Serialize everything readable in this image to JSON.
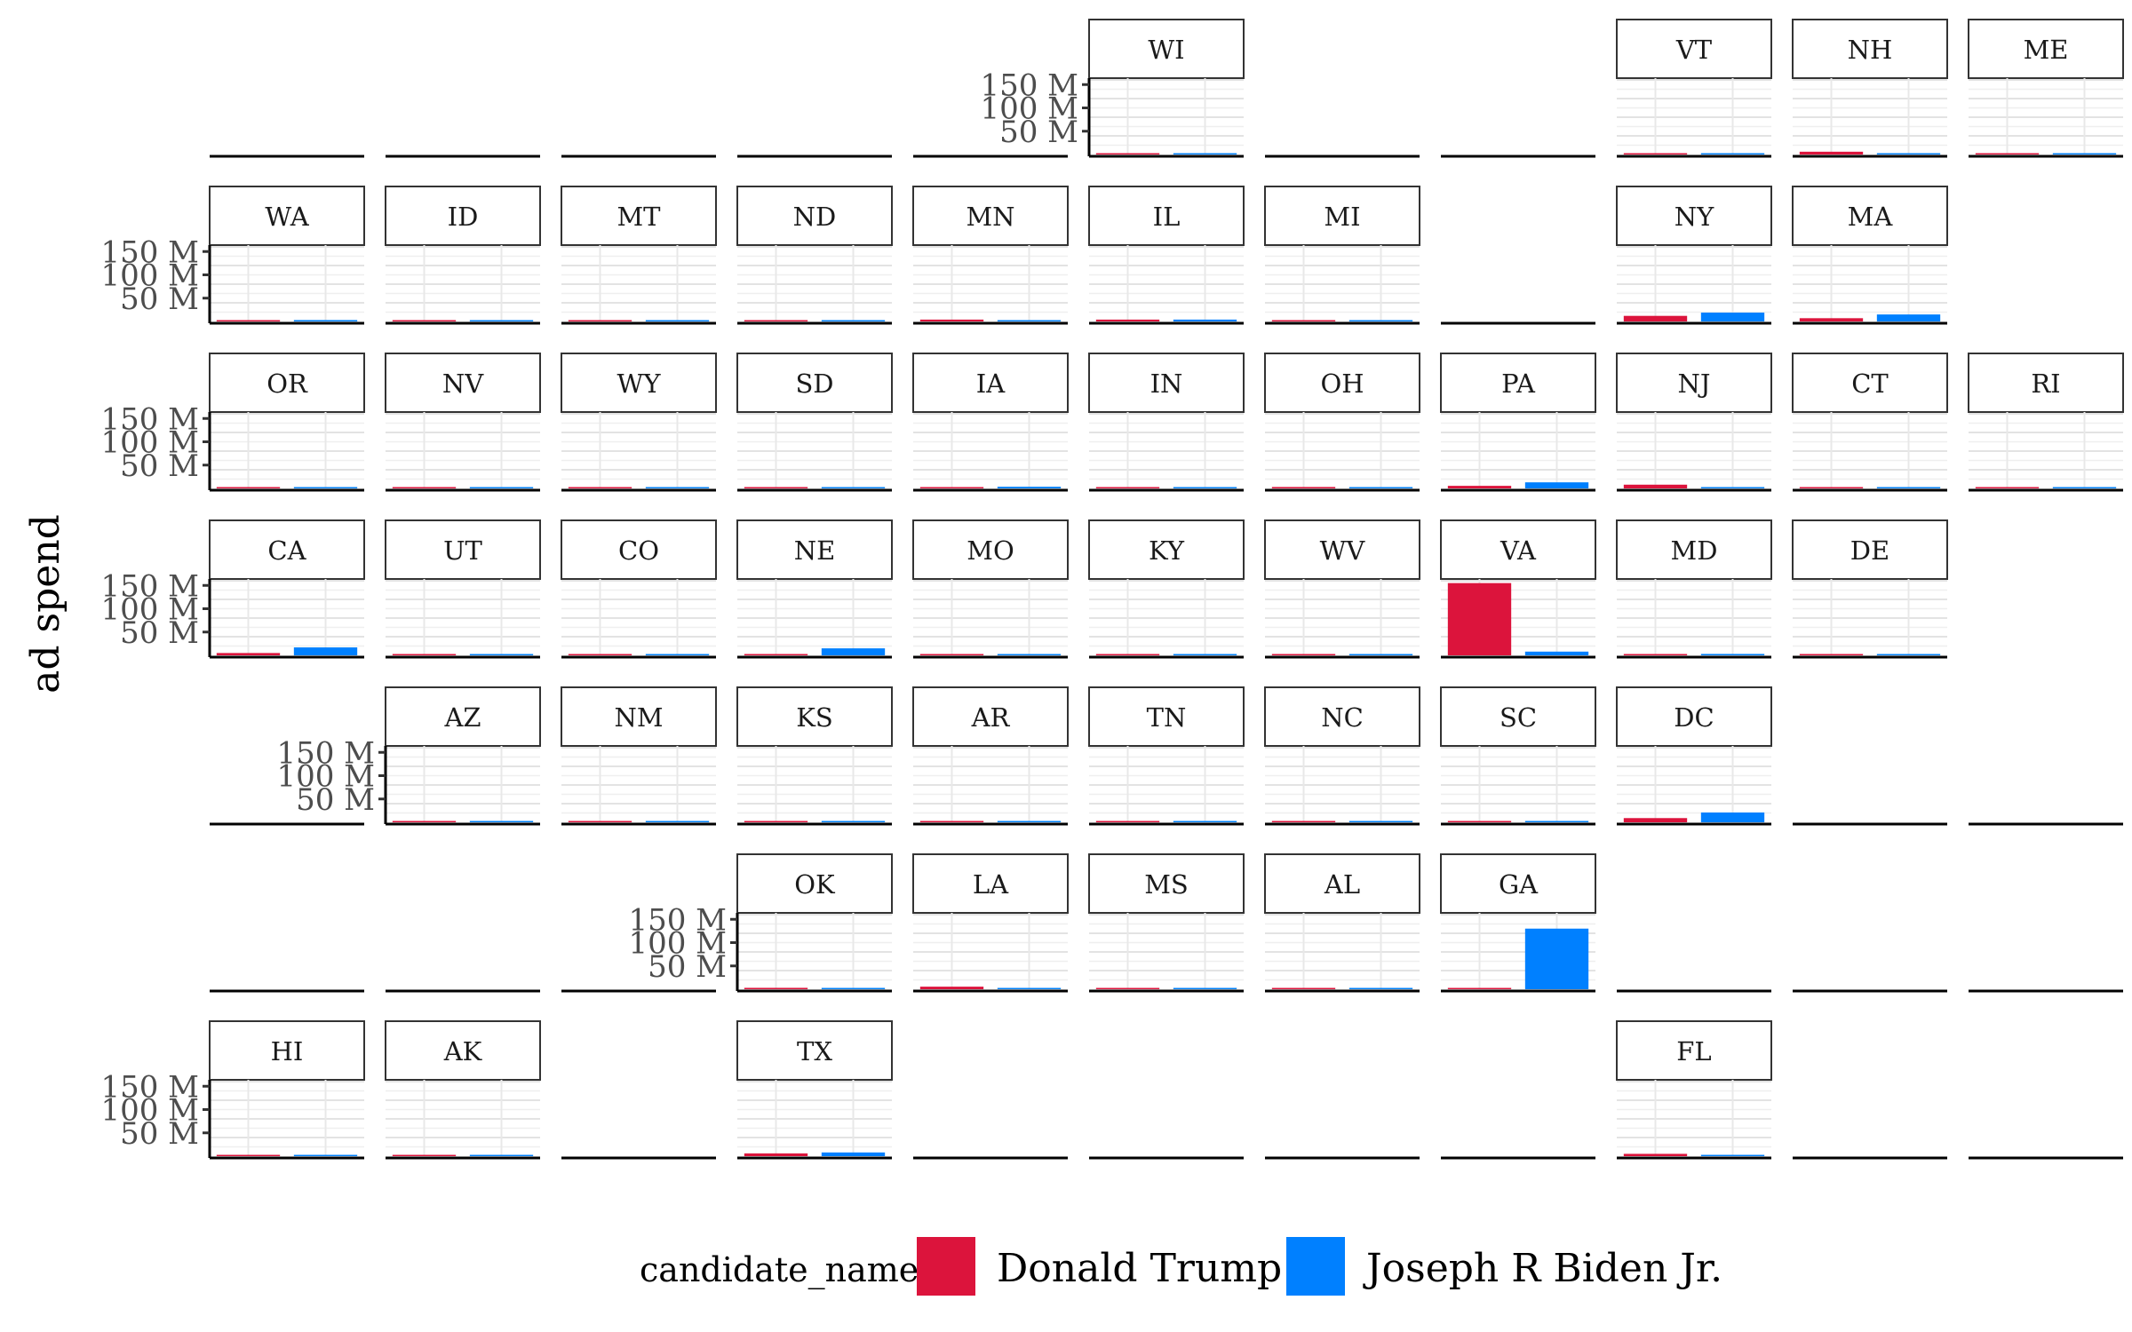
{
  "chart_data": {
    "type": "bar",
    "layout": "geofacet grid of US states",
    "ylabel": "ad spend",
    "y_ticks": [
      "50 M",
      "100 M",
      "150 M"
    ],
    "y_tick_values": [
      50,
      100,
      150
    ],
    "ylim": [
      0,
      160
    ],
    "units": "M",
    "legend": {
      "title": "candidate_name",
      "placement": "bottom",
      "entries": [
        {
          "name": "Donald Trump",
          "color": "#dc143c"
        },
        {
          "name": "Joseph R Biden Jr.",
          "color": "#0080ff"
        }
      ]
    },
    "categories": [
      "Donald Trump",
      "Joseph R Biden Jr."
    ],
    "grid": true,
    "facets": [
      {
        "state": "WI",
        "row": 0,
        "col": 5,
        "values": [
          2,
          1
        ]
      },
      {
        "state": "VT",
        "row": 0,
        "col": 8,
        "values": [
          0.2,
          0.5
        ]
      },
      {
        "state": "NH",
        "row": 0,
        "col": 9,
        "values": [
          6,
          1
        ]
      },
      {
        "state": "ME",
        "row": 0,
        "col": 10,
        "values": [
          0.5,
          0.8
        ]
      },
      {
        "state": "WA",
        "row": 1,
        "col": 0,
        "values": [
          2,
          3
        ]
      },
      {
        "state": "ID",
        "row": 1,
        "col": 1,
        "values": [
          0.3,
          0.6
        ]
      },
      {
        "state": "MT",
        "row": 1,
        "col": 2,
        "values": [
          0.8,
          0.5
        ]
      },
      {
        "state": "ND",
        "row": 1,
        "col": 3,
        "values": [
          0.2,
          0.5
        ]
      },
      {
        "state": "MN",
        "row": 1,
        "col": 4,
        "values": [
          4,
          1.5
        ]
      },
      {
        "state": "IL",
        "row": 1,
        "col": 5,
        "values": [
          4,
          4
        ]
      },
      {
        "state": "MI",
        "row": 1,
        "col": 6,
        "values": [
          1,
          2
        ]
      },
      {
        "state": "NY",
        "row": 1,
        "col": 8,
        "values": [
          12,
          19
        ]
      },
      {
        "state": "MA",
        "row": 1,
        "col": 9,
        "values": [
          7,
          15
        ]
      },
      {
        "state": "OR",
        "row": 2,
        "col": 0,
        "values": [
          0.2,
          1.5
        ]
      },
      {
        "state": "NV",
        "row": 2,
        "col": 1,
        "values": [
          1.8,
          1.5
        ]
      },
      {
        "state": "WY",
        "row": 2,
        "col": 2,
        "values": [
          0.6,
          0.2
        ]
      },
      {
        "state": "SD",
        "row": 2,
        "col": 3,
        "values": [
          0.1,
          0.2
        ]
      },
      {
        "state": "IA",
        "row": 2,
        "col": 4,
        "values": [
          1.8,
          3.5
        ]
      },
      {
        "state": "IN",
        "row": 2,
        "col": 5,
        "values": [
          0.2,
          0.8
        ]
      },
      {
        "state": "OH",
        "row": 2,
        "col": 6,
        "values": [
          3,
          1.5
        ]
      },
      {
        "state": "PA",
        "row": 2,
        "col": 7,
        "values": [
          5.5,
          13
        ]
      },
      {
        "state": "NJ",
        "row": 2,
        "col": 8,
        "values": [
          8,
          2.5
        ]
      },
      {
        "state": "CT",
        "row": 2,
        "col": 9,
        "values": [
          0.7,
          0.6
        ]
      },
      {
        "state": "RI",
        "row": 2,
        "col": 10,
        "values": [
          0.6,
          0.6
        ]
      },
      {
        "state": "CA",
        "row": 3,
        "col": 0,
        "values": [
          5,
          17
        ]
      },
      {
        "state": "UT",
        "row": 3,
        "col": 1,
        "values": [
          1.3,
          0.6
        ]
      },
      {
        "state": "CO",
        "row": 3,
        "col": 2,
        "values": [
          0.7,
          0.7
        ]
      },
      {
        "state": "NE",
        "row": 3,
        "col": 3,
        "values": [
          0.5,
          15
        ]
      },
      {
        "state": "MO",
        "row": 3,
        "col": 4,
        "values": [
          2.5,
          1
        ]
      },
      {
        "state": "KY",
        "row": 3,
        "col": 5,
        "values": [
          0.2,
          0.2
        ]
      },
      {
        "state": "WV",
        "row": 3,
        "col": 6,
        "values": [
          0.1,
          0.1
        ]
      },
      {
        "state": "VA",
        "row": 3,
        "col": 7,
        "values": [
          155,
          8
        ]
      },
      {
        "state": "MD",
        "row": 3,
        "col": 8,
        "values": [
          2.5,
          3
        ]
      },
      {
        "state": "DE",
        "row": 3,
        "col": 9,
        "values": [
          0.8,
          0.8
        ]
      },
      {
        "state": "AZ",
        "row": 4,
        "col": 1,
        "values": [
          1.5,
          2.5
        ]
      },
      {
        "state": "NM",
        "row": 4,
        "col": 2,
        "values": [
          1.2,
          0.7
        ]
      },
      {
        "state": "KS",
        "row": 4,
        "col": 3,
        "values": [
          0.3,
          0.4
        ]
      },
      {
        "state": "AR",
        "row": 4,
        "col": 4,
        "values": [
          0.8,
          0.5
        ]
      },
      {
        "state": "TN",
        "row": 4,
        "col": 5,
        "values": [
          2,
          1
        ]
      },
      {
        "state": "NC",
        "row": 4,
        "col": 6,
        "values": [
          1.2,
          1.8
        ]
      },
      {
        "state": "SC",
        "row": 4,
        "col": 7,
        "values": [
          1,
          1.5
        ]
      },
      {
        "state": "DC",
        "row": 4,
        "col": 8,
        "values": [
          9,
          21
        ]
      },
      {
        "state": "OK",
        "row": 5,
        "col": 3,
        "values": [
          3,
          0.6
        ]
      },
      {
        "state": "LA",
        "row": 5,
        "col": 4,
        "values": [
          5.5,
          1
        ]
      },
      {
        "state": "MS",
        "row": 5,
        "col": 5,
        "values": [
          0.1,
          0.2
        ]
      },
      {
        "state": "AL",
        "row": 5,
        "col": 6,
        "values": [
          0.2,
          2
        ]
      },
      {
        "state": "GA",
        "row": 5,
        "col": 7,
        "values": [
          2,
          130
        ]
      },
      {
        "state": "HI",
        "row": 6,
        "col": 0,
        "values": [
          0.2,
          0.3
        ]
      },
      {
        "state": "AK",
        "row": 6,
        "col": 1,
        "values": [
          0.1,
          0.1
        ]
      },
      {
        "state": "TX",
        "row": 6,
        "col": 3,
        "values": [
          6,
          8
        ]
      },
      {
        "state": "FL",
        "row": 6,
        "col": 8,
        "values": [
          5,
          2
        ]
      }
    ]
  }
}
